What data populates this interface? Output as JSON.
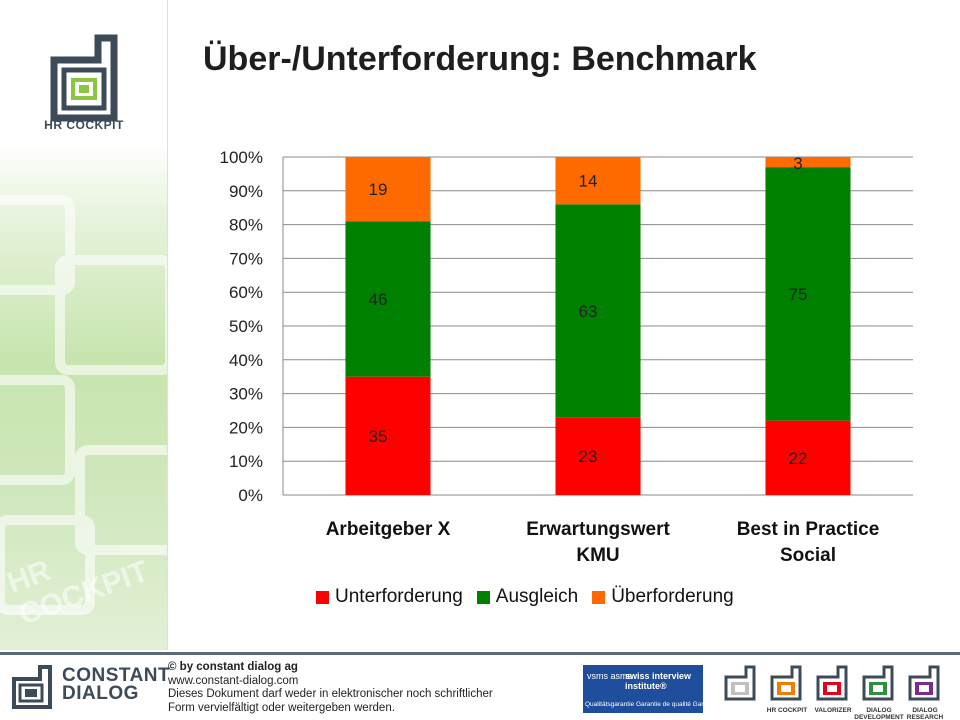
{
  "slide": {
    "title": "Über-/Unterforderung: Benchmark"
  },
  "sidebar": {
    "logo_text": "HR COCKPIT",
    "ghost_text": "HR COCKPIT"
  },
  "chart_data": {
    "type": "bar",
    "stacked": true,
    "percent_stacked": true,
    "categories": [
      "Arbeitgeber X",
      "Erwartungswert KMU",
      "Best in Practice Social"
    ],
    "category_lines": [
      [
        "Arbeitgeber X"
      ],
      [
        "Erwartungswert",
        "KMU"
      ],
      [
        "Best in Practice",
        "Social"
      ]
    ],
    "series": [
      {
        "name": "Unterforderung",
        "values": [
          35,
          23,
          22
        ],
        "color": "#ff0000"
      },
      {
        "name": "Ausgleich",
        "values": [
          46,
          63,
          75
        ],
        "color": "#008000"
      },
      {
        "name": "Überforderung",
        "values": [
          19,
          14,
          3
        ],
        "color": "#ff6a00"
      }
    ],
    "y_ticks": [
      "0%",
      "10%",
      "20%",
      "30%",
      "40%",
      "50%",
      "60%",
      "70%",
      "80%",
      "90%",
      "100%"
    ],
    "ylim": [
      0,
      100
    ],
    "grid": true,
    "legend_position": "bottom",
    "title": "",
    "xlabel": "",
    "ylabel": ""
  },
  "footer": {
    "brand_line1": "CONSTANT",
    "brand_line2": "DIALOG",
    "copyright_lines": [
      "© by constant dialog ag",
      "www.constant-dialog.com",
      "Dieses Dokument darf weder in elektronischer noch schriftlicher",
      "Form vervielfältigt oder weitergeben werden."
    ],
    "badge_left": "vsms asms",
    "badge_right": "swiss interview institute®",
    "badge_caption": "Qualitätsgarantie   Garantie de qualité   Garanzia di qualità",
    "products": [
      {
        "label": "",
        "color": "#c0c0c0"
      },
      {
        "label": "HR COCKPIT",
        "color": "#f07d00"
      },
      {
        "label": "VALORIZER",
        "color": "#e3001b"
      },
      {
        "label": "DIALOG DEVELOPMENT",
        "color": "#2f8f3f"
      },
      {
        "label": "DIALOG RESEARCH",
        "color": "#7a2b8f"
      }
    ]
  }
}
